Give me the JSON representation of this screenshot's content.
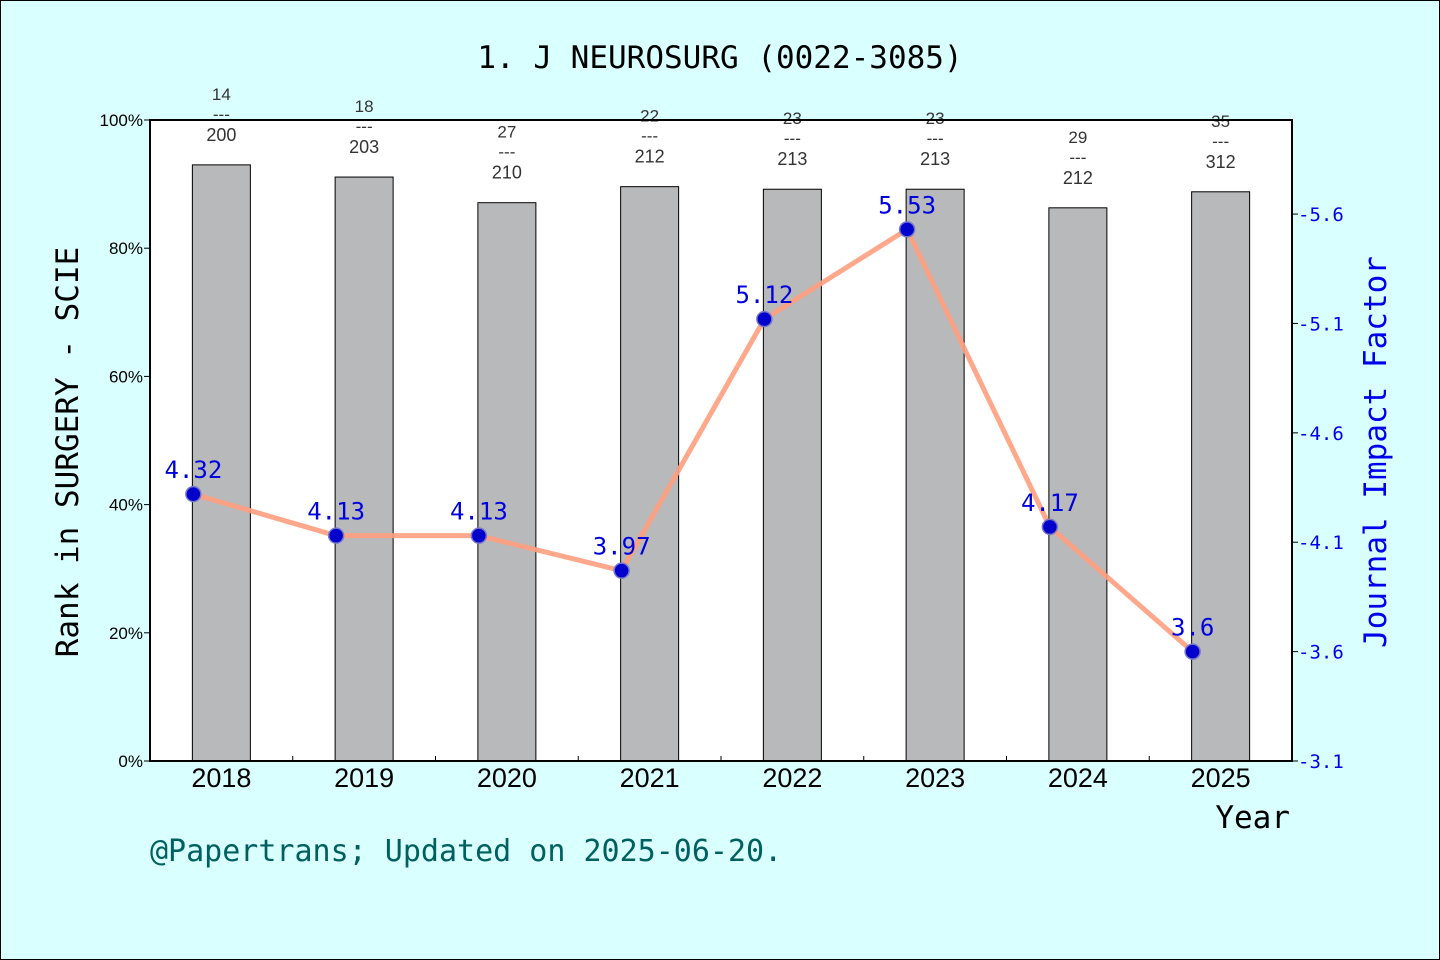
{
  "chart_data": {
    "type": "bar",
    "title": "1. J NEUROSURG (0022-3085)",
    "xlabel": "Year",
    "ylabel_left": "Rank in SURGERY - SCIE",
    "ylabel_right": "Journal Impact Factor",
    "categories": [
      "2018",
      "2019",
      "2020",
      "2021",
      "2022",
      "2023",
      "2024",
      "2025"
    ],
    "left_axis": {
      "ylim": [
        0,
        100
      ],
      "ticks": [
        0,
        20,
        40,
        60,
        80,
        100
      ],
      "tick_labels": [
        "0%",
        "20%",
        "40%",
        "60%",
        "80%",
        "100%"
      ]
    },
    "right_axis": {
      "ylim": [
        3.1,
        6.03
      ],
      "ticks": [
        3.1,
        3.6,
        4.1,
        4.6,
        5.1,
        5.6
      ],
      "tick_labels": [
        "3.1",
        "3.6",
        "4.1",
        "4.6",
        "5.1",
        "5.6"
      ]
    },
    "series": [
      {
        "kind": "bar",
        "axis": "left",
        "values": [
          93.0,
          91.1,
          87.1,
          89.6,
          89.2,
          89.2,
          86.3,
          88.8
        ],
        "color": "#b8b9ba"
      },
      {
        "kind": "line",
        "axis": "right",
        "values": [
          4.32,
          4.13,
          4.13,
          3.97,
          5.12,
          5.53,
          4.17,
          3.6
        ],
        "labels": [
          "4.32",
          "4.13",
          "4.13",
          "3.97",
          "5.12",
          "5.53",
          "4.17",
          "3.6"
        ],
        "line_color": "#ff9f7f",
        "marker_color": "#0000cc"
      }
    ],
    "rank_labels": [
      {
        "rank": "14",
        "total": "200"
      },
      {
        "rank": "18",
        "total": "203"
      },
      {
        "rank": "27",
        "total": "210"
      },
      {
        "rank": "22",
        "total": "212"
      },
      {
        "rank": "23",
        "total": "213"
      },
      {
        "rank": "23",
        "total": "213"
      },
      {
        "rank": "29",
        "total": "212"
      },
      {
        "rank": "35",
        "total": "312"
      }
    ],
    "rank_separator": "---",
    "grid": false
  },
  "footer": "@Papertrans; Updated on 2025-06-20."
}
